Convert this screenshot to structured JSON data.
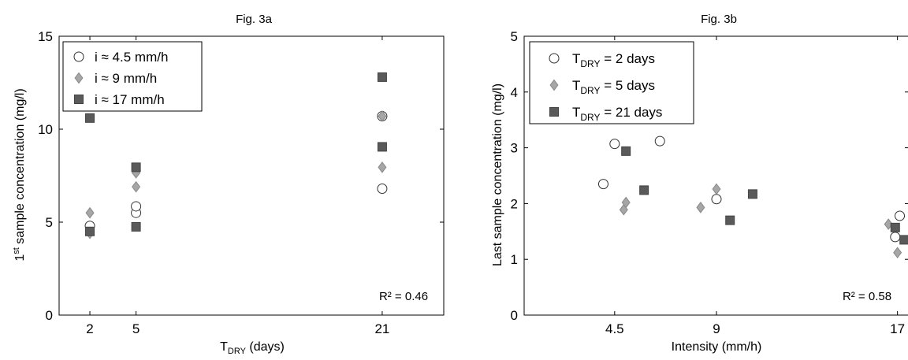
{
  "chart_data": [
    {
      "type": "scatter",
      "title": "Fig. 3a",
      "xlabel_main": "T",
      "xlabel_sub": "DRY",
      "xlabel_rest": " (days)",
      "ylabel_pre": "1",
      "ylabel_sup": "st",
      "ylabel_rest": " sample concentration (mg/l)",
      "xlim": [
        0,
        25
      ],
      "ylim": [
        0,
        15
      ],
      "xticks": [
        2,
        5,
        21
      ],
      "yticks": [
        0,
        5,
        10,
        15
      ],
      "legend_position": "top-left",
      "annotation": "R² = 0.46",
      "series": [
        {
          "name": "i ≈ 4.5 mm/h",
          "marker": "circle",
          "color": "#ffffff",
          "points": [
            [
              2,
              4.8
            ],
            [
              5,
              5.5
            ],
            [
              5,
              5.85
            ],
            [
              21,
              6.8
            ],
            [
              21,
              10.7
            ]
          ]
        },
        {
          "name": "i ≈ 9 mm/h",
          "marker": "diamond",
          "color": "#a6a6a6",
          "points": [
            [
              2,
              5.5
            ],
            [
              2,
              4.4
            ],
            [
              5,
              6.9
            ],
            [
              5,
              7.65
            ],
            [
              21,
              7.95
            ],
            [
              21,
              10.7
            ]
          ]
        },
        {
          "name": "i ≈ 17 mm/h",
          "marker": "square",
          "color": "#5a5a5a",
          "points": [
            [
              2,
              10.6
            ],
            [
              2,
              4.5
            ],
            [
              5,
              7.95
            ],
            [
              5,
              4.75
            ],
            [
              21,
              12.8
            ],
            [
              21,
              9.05
            ]
          ]
        }
      ]
    },
    {
      "type": "scatter",
      "title": "Fig. 3b",
      "xlabel": "Intensity (mm/h)",
      "ylabel": "Last sample concentration (mg/l)",
      "xlim": [
        0.5,
        17.5
      ],
      "ylim": [
        0,
        5
      ],
      "xticks": [
        4.5,
        9,
        17
      ],
      "yticks": [
        0,
        1,
        2,
        3,
        4,
        5
      ],
      "legend_position": "top-left",
      "annotation": "R² = 0.58",
      "series": [
        {
          "name_main": "T",
          "name_sub": "DRY",
          "name_rest": " = 2 days",
          "marker": "circle",
          "color": "#ffffff",
          "points": [
            [
              4.0,
              2.35
            ],
            [
              4.5,
              3.07
            ],
            [
              6.5,
              3.12
            ],
            [
              9.0,
              2.08
            ],
            [
              16.9,
              1.4
            ],
            [
              17.1,
              1.78
            ]
          ]
        },
        {
          "name_main": "T",
          "name_sub": "DRY",
          "name_rest": " = 5 days",
          "marker": "diamond",
          "color": "#a6a6a6",
          "points": [
            [
              4.9,
              1.89
            ],
            [
              5.0,
              2.02
            ],
            [
              8.3,
              1.93
            ],
            [
              9.0,
              2.26
            ],
            [
              16.6,
              1.63
            ],
            [
              17.0,
              1.12
            ]
          ]
        },
        {
          "name_main": "T",
          "name_sub": "DRY",
          "name_rest": " = 21 days",
          "marker": "square",
          "color": "#5a5a5a",
          "points": [
            [
              5.0,
              2.94
            ],
            [
              5.8,
              2.24
            ],
            [
              9.6,
              1.7
            ],
            [
              10.6,
              2.17
            ],
            [
              16.9,
              1.57
            ],
            [
              17.3,
              1.35
            ]
          ]
        }
      ]
    }
  ]
}
